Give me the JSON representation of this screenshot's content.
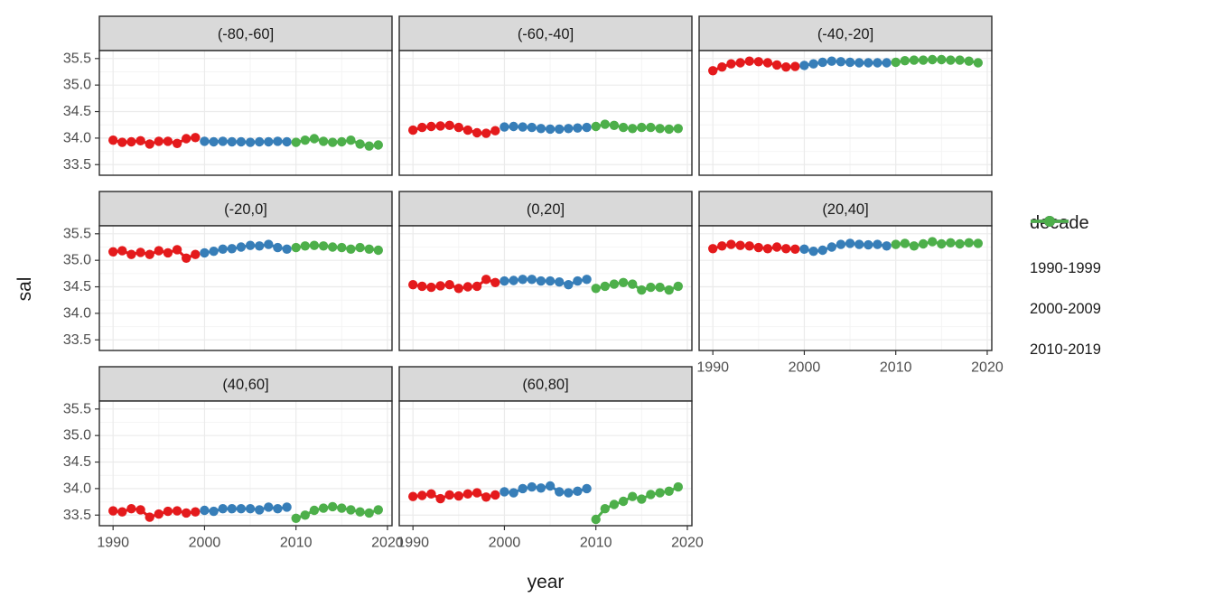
{
  "chart_data": {
    "type": "line",
    "title": "",
    "xlabel": "year",
    "ylabel": "sal",
    "legend_title": "decade",
    "legend_position": "right",
    "grid": "major+minor",
    "xlim": [
      1988.5,
      2020.5
    ],
    "ylim": [
      33.3,
      35.65
    ],
    "x_major_ticks": [
      1990,
      2000,
      2010,
      2020
    ],
    "x_minor_ticks": [
      1995,
      2005,
      2015
    ],
    "y_major_ticks": [
      33.5,
      34.0,
      34.5,
      35.0,
      35.5
    ],
    "y_minor_ticks": [
      33.75,
      34.25,
      34.75,
      35.25
    ],
    "x": [
      1990,
      1991,
      1992,
      1993,
      1994,
      1995,
      1996,
      1997,
      1998,
      1999,
      2000,
      2001,
      2002,
      2003,
      2004,
      2005,
      2006,
      2007,
      2008,
      2009,
      2010,
      2011,
      2012,
      2013,
      2014,
      2015,
      2016,
      2017,
      2018,
      2019
    ],
    "decades": [
      {
        "label": "1990-1999",
        "color": "#E41A1C",
        "start": 1990,
        "end": 1999
      },
      {
        "label": "2000-2009",
        "color": "#377EB8",
        "start": 2000,
        "end": 2009
      },
      {
        "label": "2010-2019",
        "color": "#4DAF4A",
        "start": 2010,
        "end": 2019
      }
    ],
    "facets": [
      {
        "label": "(-80,-60]",
        "values": [
          33.96,
          33.92,
          33.93,
          33.95,
          33.89,
          33.94,
          33.94,
          33.9,
          33.99,
          34.01,
          33.94,
          33.93,
          33.94,
          33.93,
          33.93,
          33.92,
          33.93,
          33.93,
          33.94,
          33.93,
          33.92,
          33.96,
          33.99,
          33.94,
          33.92,
          33.93,
          33.96,
          33.89,
          33.85,
          33.87
        ]
      },
      {
        "label": "(-60,-40]",
        "values": [
          34.15,
          34.2,
          34.22,
          34.23,
          34.24,
          34.2,
          34.15,
          34.1,
          34.09,
          34.14,
          34.21,
          34.22,
          34.21,
          34.2,
          34.18,
          34.17,
          34.17,
          34.18,
          34.19,
          34.2,
          34.22,
          34.26,
          34.24,
          34.2,
          34.18,
          34.2,
          34.2,
          34.18,
          34.17,
          34.18
        ]
      },
      {
        "label": "(-40,-20]",
        "values": [
          35.27,
          35.34,
          35.4,
          35.42,
          35.45,
          35.44,
          35.42,
          35.38,
          35.34,
          35.35,
          35.37,
          35.4,
          35.43,
          35.45,
          35.44,
          35.43,
          35.42,
          35.42,
          35.42,
          35.42,
          35.43,
          35.46,
          35.47,
          35.47,
          35.48,
          35.48,
          35.47,
          35.47,
          35.45,
          35.42
        ]
      },
      {
        "label": "(-20,0]",
        "values": [
          35.16,
          35.18,
          35.11,
          35.15,
          35.11,
          35.18,
          35.14,
          35.2,
          35.04,
          35.11,
          35.14,
          35.17,
          35.21,
          35.22,
          35.25,
          35.28,
          35.27,
          35.3,
          35.24,
          35.21,
          35.24,
          35.27,
          35.28,
          35.27,
          35.25,
          35.24,
          35.21,
          35.24,
          35.21,
          35.19
        ]
      },
      {
        "label": "(0,20]",
        "values": [
          34.54,
          34.51,
          34.49,
          34.52,
          34.54,
          34.47,
          34.5,
          34.51,
          34.64,
          34.58,
          34.61,
          34.62,
          34.64,
          34.64,
          34.61,
          34.61,
          34.59,
          34.54,
          34.61,
          34.64,
          34.47,
          34.51,
          34.55,
          34.58,
          34.55,
          34.44,
          34.49,
          34.49,
          34.44,
          34.51
        ]
      },
      {
        "label": "(20,40]",
        "values": [
          35.22,
          35.27,
          35.3,
          35.28,
          35.27,
          35.24,
          35.22,
          35.25,
          35.22,
          35.21,
          35.21,
          35.17,
          35.19,
          35.25,
          35.3,
          35.32,
          35.3,
          35.29,
          35.3,
          35.27,
          35.3,
          35.32,
          35.27,
          35.31,
          35.35,
          35.31,
          35.33,
          35.31,
          35.33,
          35.32
        ]
      },
      {
        "label": "(40,60]",
        "values": [
          33.58,
          33.56,
          33.62,
          33.6,
          33.46,
          33.52,
          33.57,
          33.58,
          33.54,
          33.56,
          33.59,
          33.57,
          33.62,
          33.62,
          33.62,
          33.62,
          33.6,
          33.65,
          33.62,
          33.65,
          33.44,
          33.5,
          33.59,
          33.63,
          33.66,
          33.63,
          33.6,
          33.56,
          33.54,
          33.6
        ]
      },
      {
        "label": "(60,80]",
        "values": [
          33.85,
          33.87,
          33.9,
          33.81,
          33.88,
          33.86,
          33.9,
          33.92,
          33.84,
          33.88,
          33.94,
          33.92,
          34.0,
          34.03,
          34.01,
          34.05,
          33.94,
          33.92,
          33.95,
          34.0,
          33.42,
          33.62,
          33.7,
          33.76,
          33.85,
          33.8,
          33.89,
          33.92,
          33.95,
          34.03
        ]
      }
    ],
    "colors": {
      "strip_bg": "#D9D9D9",
      "panel_bg": "#FFFFFF",
      "panel_border": "#2B2B2B",
      "grid_major": "#EBEBEB",
      "grid_minor": "#F4F4F4",
      "tick_text": "#4D4D4D",
      "text": "#1A1A1A"
    }
  }
}
